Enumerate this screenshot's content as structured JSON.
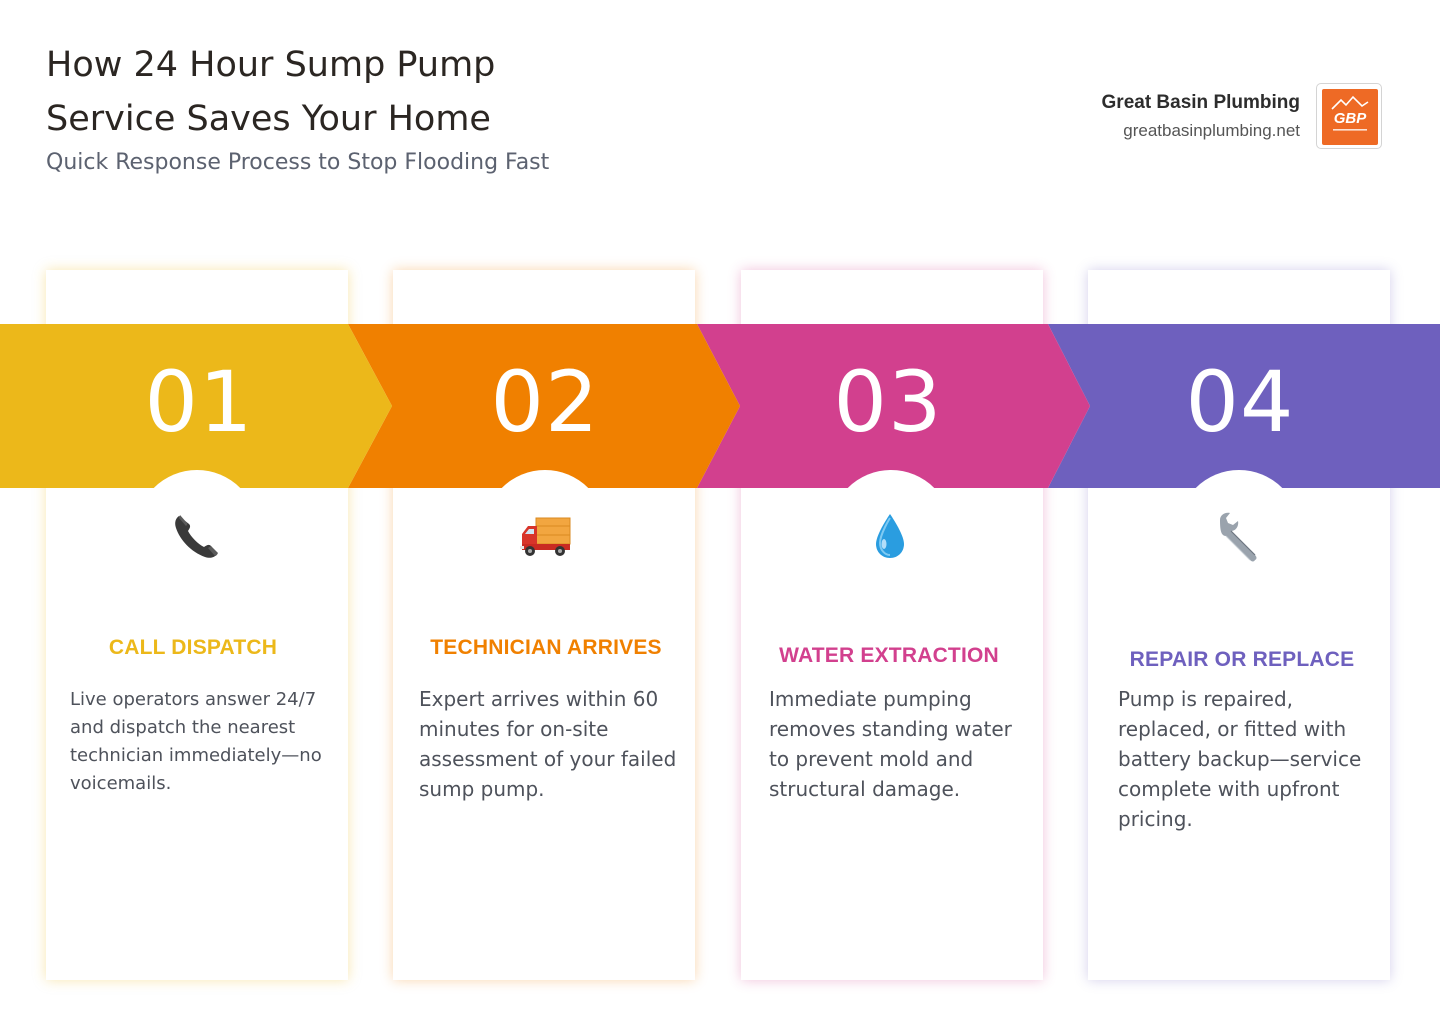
{
  "header": {
    "title": "How 24 Hour Sump Pump Service Saves Your Home",
    "subtitle": "Quick Response Process to Stop Flooding Fast"
  },
  "brand": {
    "name": "Great Basin Plumbing",
    "url": "greatbasinplumbing.net",
    "logo_text": "GBP",
    "logo_color": "#ee6a25"
  },
  "steps": [
    {
      "number": "01",
      "title": "CALL DISPATCH",
      "description": "Live operators answer 24/7 and dispatch the nearest technician immediately—no voicemails.",
      "icon": "phone-icon",
      "color": "#ecb81a"
    },
    {
      "number": "02",
      "title": "TECHNICIAN ARRIVES",
      "description": "Expert arrives within 60 minutes for on-site assessment of your failed sump pump.",
      "icon": "truck-icon",
      "color": "#f08000"
    },
    {
      "number": "03",
      "title": "WATER EXTRACTION",
      "description": "Immediate pumping removes standing water to prevent mold and structural damage.",
      "icon": "water-drop-icon",
      "color": "#d2408e"
    },
    {
      "number": "04",
      "title": "REPAIR OR REPLACE",
      "description": "Pump is repaired, replaced, or fitted with battery backup—service complete with upfront pricing.",
      "icon": "wrench-icon",
      "color": "#6e60be"
    }
  ]
}
